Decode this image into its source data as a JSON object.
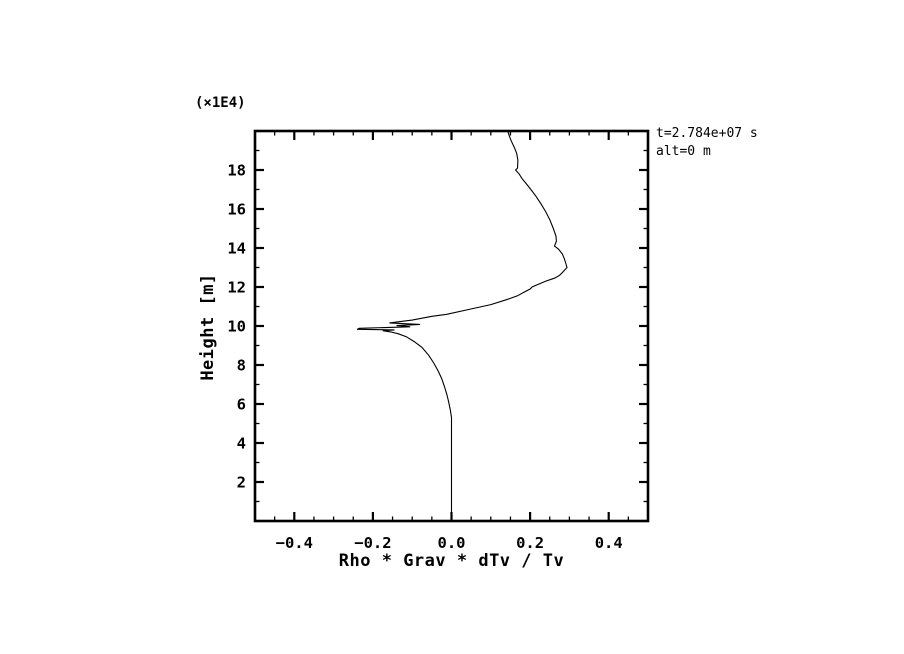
{
  "page": {
    "background_color": "#ffffff",
    "foreground_color": "#000000"
  },
  "chart_data": {
    "type": "line",
    "title": "",
    "xlabel": "Rho * Grav * dTv / Tv",
    "ylabel": "Height [m]",
    "y_multiplier_label": "(×1E4)",
    "annotations": {
      "time": "t=2.784e+07 s",
      "alt": "alt=0 m"
    },
    "xlim": [
      -0.5,
      0.5
    ],
    "ylim": [
      0,
      20
    ],
    "grid": false,
    "legend": "none",
    "axis_color": "#000000",
    "x_ticks": {
      "major": [
        -0.4,
        -0.2,
        0.0,
        0.2,
        0.4
      ],
      "labels": [
        "−0.4",
        "−0.2",
        "0.0",
        "0.2",
        "0.4"
      ],
      "minor_step": 0.05
    },
    "y_ticks": {
      "major": [
        2,
        4,
        6,
        8,
        10,
        12,
        14,
        16,
        18
      ],
      "labels": [
        "2",
        "4",
        "6",
        "8",
        "10",
        "12",
        "14",
        "16",
        "18"
      ],
      "minor_step": 1
    },
    "series": [
      {
        "name": "rho-grav-dTv-over-Tv-profile",
        "color": "#000000",
        "points": [
          [
            0.0,
            0.0
          ],
          [
            0.0,
            5.3
          ],
          [
            -0.003,
            5.7
          ],
          [
            -0.007,
            6.1
          ],
          [
            -0.012,
            6.5
          ],
          [
            -0.018,
            6.9
          ],
          [
            -0.025,
            7.3
          ],
          [
            -0.034,
            7.7
          ],
          [
            -0.045,
            8.1
          ],
          [
            -0.058,
            8.5
          ],
          [
            -0.075,
            8.9
          ],
          [
            -0.095,
            9.2
          ],
          [
            -0.115,
            9.45
          ],
          [
            -0.135,
            9.6
          ],
          [
            -0.155,
            9.7
          ],
          [
            -0.175,
            9.76
          ],
          [
            -0.145,
            9.8
          ],
          [
            -0.24,
            9.83
          ],
          [
            -0.235,
            9.88
          ],
          [
            -0.105,
            9.96
          ],
          [
            -0.14,
            10.02
          ],
          [
            -0.08,
            10.08
          ],
          [
            -0.158,
            10.16
          ],
          [
            -0.1,
            10.3
          ],
          [
            -0.05,
            10.5
          ],
          [
            -0.012,
            10.6
          ],
          [
            0.045,
            10.85
          ],
          [
            0.1,
            11.1
          ],
          [
            0.14,
            11.35
          ],
          [
            0.168,
            11.55
          ],
          [
            0.186,
            11.75
          ],
          [
            0.2,
            11.9
          ],
          [
            0.205,
            12.0
          ],
          [
            0.222,
            12.15
          ],
          [
            0.24,
            12.3
          ],
          [
            0.262,
            12.45
          ],
          [
            0.275,
            12.6
          ],
          [
            0.285,
            12.8
          ],
          [
            0.294,
            13.0
          ],
          [
            0.291,
            13.2
          ],
          [
            0.287,
            13.45
          ],
          [
            0.282,
            13.7
          ],
          [
            0.272,
            13.95
          ],
          [
            0.262,
            14.1
          ],
          [
            0.267,
            14.35
          ],
          [
            0.266,
            14.6
          ],
          [
            0.259,
            15.0
          ],
          [
            0.25,
            15.45
          ],
          [
            0.24,
            15.85
          ],
          [
            0.228,
            16.25
          ],
          [
            0.215,
            16.65
          ],
          [
            0.202,
            17.0
          ],
          [
            0.19,
            17.3
          ],
          [
            0.18,
            17.55
          ],
          [
            0.172,
            17.8
          ],
          [
            0.163,
            18.0
          ],
          [
            0.168,
            18.1
          ],
          [
            0.169,
            18.5
          ],
          [
            0.166,
            18.85
          ],
          [
            0.16,
            19.15
          ],
          [
            0.152,
            19.5
          ],
          [
            0.147,
            19.75
          ],
          [
            0.143,
            20.0
          ]
        ]
      }
    ]
  }
}
